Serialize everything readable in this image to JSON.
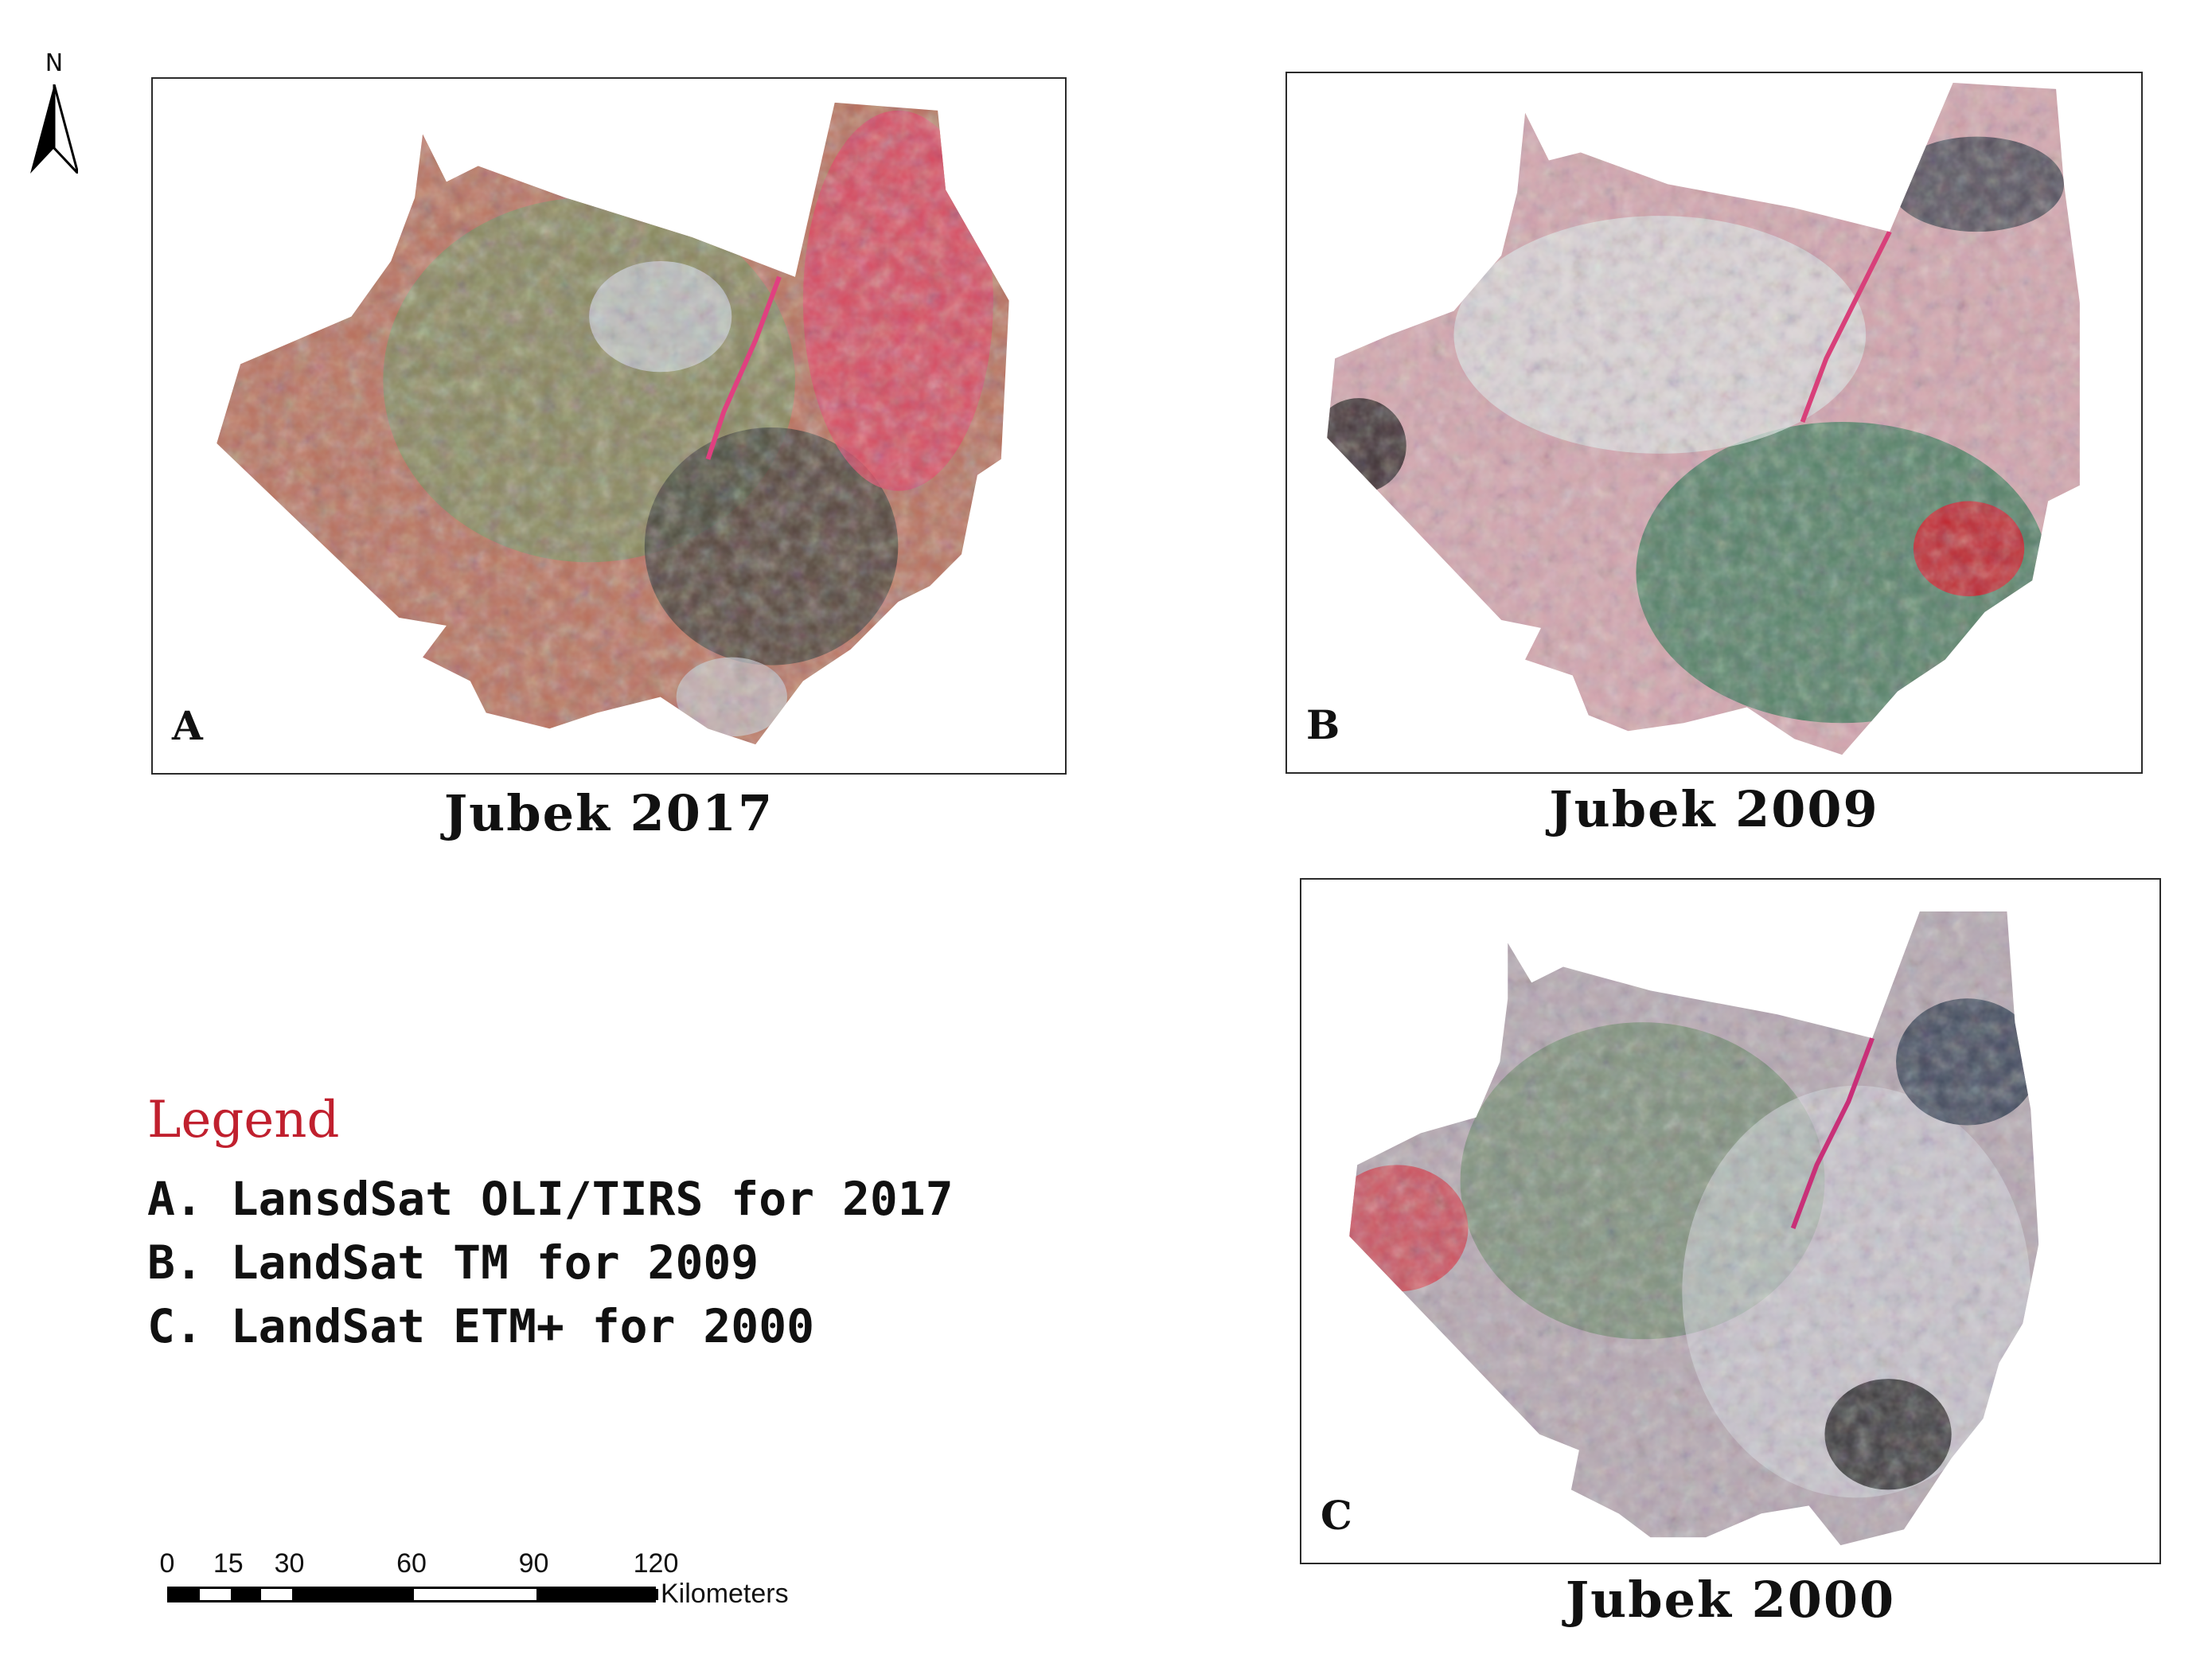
{
  "north_arrow": {
    "label": "N"
  },
  "maps": [
    {
      "id": "A",
      "title": "Jubek 2017",
      "colors": {
        "base": "#b9705c",
        "veg": "#7f8a5c",
        "bright": "#c9ccd4",
        "hot": "#e04060",
        "dark": "#3b3a32"
      }
    },
    {
      "id": "B",
      "title": "Jubek 2009",
      "colors": {
        "base": "#d4a5ae",
        "veg": "#3f7a5c",
        "bright": "#dfe4e4",
        "hot": "#cc1d2a",
        "dark": "#2b3440"
      }
    },
    {
      "id": "C",
      "title": "Jubek 2000",
      "colors": {
        "base": "#b6a8b2",
        "veg": "#6e8a6c",
        "bright": "#d9dbe3",
        "hot": "#d33b4a",
        "dark": "#253247"
      }
    }
  ],
  "legend": {
    "title": "Legend",
    "items": [
      "A. LansdSat OLI/TIRS for 2017",
      "B. LandSat TM for 2009",
      "C. LandSat ETM+ for 2000"
    ]
  },
  "scale_bar": {
    "ticks": [
      "0",
      "15",
      "30",
      "60",
      "90",
      "120"
    ],
    "tick_values": [
      0,
      15,
      30,
      60,
      90,
      120
    ],
    "unit": "Kilometers"
  },
  "colors": {
    "legend_title": "#c0202e",
    "frame": "#2b2b2b"
  }
}
